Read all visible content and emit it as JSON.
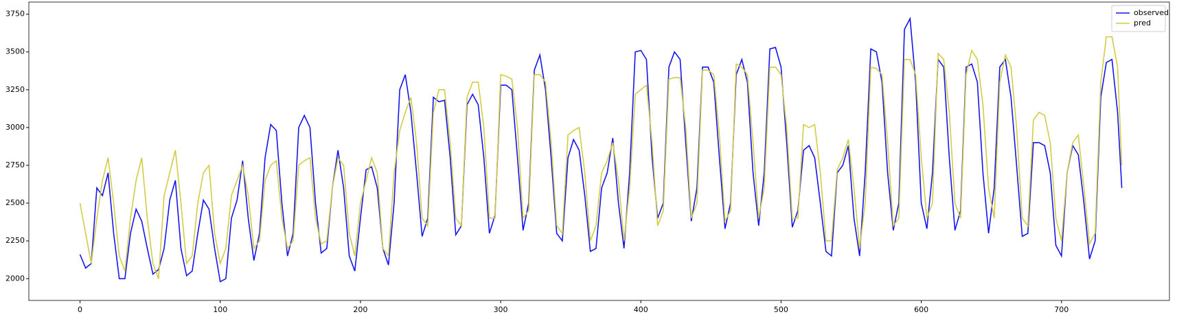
{
  "chart_data": {
    "type": "line",
    "x": [
      0,
      4,
      8,
      12,
      16,
      20,
      24,
      28,
      32,
      36,
      40,
      44,
      48,
      52,
      56,
      60,
      64,
      68,
      72,
      76,
      80,
      84,
      88,
      92,
      96,
      100,
      104,
      108,
      112,
      116,
      120,
      124,
      128,
      132,
      136,
      140,
      144,
      148,
      152,
      156,
      160,
      164,
      168,
      172,
      176,
      180,
      184,
      188,
      192,
      196,
      200,
      204,
      208,
      212,
      216,
      220,
      224,
      228,
      232,
      236,
      240,
      244,
      248,
      252,
      256,
      260,
      264,
      268,
      272,
      276,
      280,
      284,
      288,
      292,
      296,
      300,
      304,
      308,
      312,
      316,
      320,
      324,
      328,
      332,
      336,
      340,
      344,
      348,
      352,
      356,
      360,
      364,
      368,
      372,
      376,
      380,
      384,
      388,
      392,
      396,
      400,
      404,
      408,
      412,
      416,
      420,
      424,
      428,
      432,
      436,
      440,
      444,
      448,
      452,
      456,
      460,
      464,
      468,
      472,
      476,
      480,
      484,
      488,
      492,
      496,
      500,
      504,
      508,
      512,
      516,
      520,
      524,
      528,
      532,
      536,
      540,
      544,
      548,
      552,
      556,
      560,
      564,
      568,
      572,
      576,
      580,
      584,
      588,
      592,
      596,
      600,
      604,
      608,
      612,
      616,
      620,
      624,
      628,
      632,
      636,
      640,
      644,
      648,
      652,
      656,
      660,
      664,
      668,
      672,
      676,
      680,
      684,
      688,
      692,
      696,
      700,
      704,
      708,
      712,
      716,
      720,
      724,
      728,
      732,
      736,
      740,
      743
    ],
    "series": [
      {
        "name": "observed",
        "color": "#1414f0",
        "values": [
          2160,
          2070,
          2100,
          2600,
          2550,
          2700,
          2300,
          2000,
          2000,
          2300,
          2460,
          2380,
          2200,
          2030,
          2060,
          2200,
          2520,
          2650,
          2200,
          2020,
          2050,
          2300,
          2520,
          2460,
          2200,
          1980,
          2000,
          2400,
          2520,
          2780,
          2400,
          2120,
          2300,
          2800,
          3020,
          2980,
          2500,
          2150,
          2300,
          3000,
          3080,
          3000,
          2500,
          2170,
          2200,
          2600,
          2850,
          2600,
          2150,
          2050,
          2400,
          2720,
          2740,
          2600,
          2200,
          2090,
          2500,
          3250,
          3350,
          3100,
          2700,
          2280,
          2400,
          3200,
          3170,
          3180,
          2800,
          2290,
          2350,
          3150,
          3220,
          3150,
          2800,
          2300,
          2420,
          3280,
          3280,
          3250,
          2800,
          2320,
          2500,
          3380,
          3480,
          3250,
          2800,
          2300,
          2250,
          2800,
          2920,
          2850,
          2550,
          2180,
          2200,
          2600,
          2700,
          2930,
          2500,
          2200,
          2700,
          3500,
          3510,
          3450,
          2800,
          2400,
          2500,
          3400,
          3500,
          3450,
          2900,
          2380,
          2600,
          3400,
          3400,
          3300,
          2800,
          2330,
          2500,
          3350,
          3450,
          3300,
          2700,
          2350,
          2700,
          3520,
          3530,
          3400,
          2900,
          2340,
          2450,
          2850,
          2880,
          2800,
          2500,
          2180,
          2150,
          2700,
          2750,
          2880,
          2400,
          2150,
          2700,
          3520,
          3500,
          3300,
          2700,
          2320,
          2500,
          3650,
          3720,
          3300,
          2500,
          2330,
          2700,
          3450,
          3400,
          2800,
          2320,
          2450,
          3400,
          3420,
          3300,
          2700,
          2300,
          2600,
          3400,
          3450,
          3200,
          2750,
          2280,
          2300,
          2900,
          2900,
          2880,
          2700,
          2220,
          2150,
          2700,
          2880,
          2820,
          2500,
          2130,
          2250,
          3200,
          3430,
          3450,
          3100,
          2600
        ]
      },
      {
        "name": "pred",
        "color": "#d2cc44",
        "values": [
          2500,
          2300,
          2100,
          2400,
          2650,
          2800,
          2500,
          2150,
          2050,
          2400,
          2650,
          2800,
          2400,
          2100,
          2000,
          2550,
          2700,
          2850,
          2500,
          2100,
          2150,
          2500,
          2700,
          2750,
          2300,
          2100,
          2200,
          2550,
          2650,
          2750,
          2550,
          2200,
          2250,
          2650,
          2750,
          2780,
          2400,
          2200,
          2250,
          2750,
          2780,
          2800,
          2400,
          2230,
          2250,
          2600,
          2800,
          2750,
          2300,
          2150,
          2500,
          2650,
          2800,
          2700,
          2200,
          2150,
          2700,
          2980,
          3100,
          3200,
          2900,
          2400,
          2350,
          3100,
          3250,
          3250,
          2900,
          2400,
          2350,
          3200,
          3300,
          3300,
          3000,
          2400,
          2400,
          3350,
          3340,
          3320,
          3000,
          2400,
          2450,
          3350,
          3350,
          3300,
          2900,
          2350,
          2300,
          2950,
          2980,
          3000,
          2700,
          2250,
          2350,
          2700,
          2780,
          2900,
          2650,
          2250,
          2600,
          3220,
          3250,
          3280,
          2900,
          2350,
          2450,
          3320,
          3330,
          3330,
          3000,
          2400,
          2500,
          3380,
          3380,
          3350,
          2950,
          2380,
          2450,
          3420,
          3400,
          3350,
          2900,
          2400,
          2600,
          3400,
          3400,
          3350,
          3000,
          2400,
          2400,
          3020,
          3000,
          3020,
          2700,
          2250,
          2250,
          2720,
          2800,
          2920,
          2600,
          2200,
          2500,
          3400,
          3390,
          3350,
          2900,
          2350,
          2400,
          3450,
          3450,
          3350,
          2800,
          2400,
          2500,
          3490,
          3450,
          3100,
          2500,
          2400,
          3350,
          3510,
          3450,
          3150,
          2600,
          2400,
          3300,
          3480,
          3400,
          3000,
          2400,
          2350,
          3050,
          3100,
          3080,
          2900,
          2400,
          2250,
          2700,
          2900,
          2950,
          2600,
          2230,
          2300,
          3300,
          3600,
          3600,
          3400,
          2750
        ]
      }
    ],
    "xlim": [
      -36.5,
      777
    ],
    "ylim": [
      1856,
      3830
    ],
    "xticks": [
      0,
      100,
      200,
      300,
      400,
      500,
      600,
      700
    ],
    "yticks": [
      2000,
      2250,
      2500,
      2750,
      3000,
      3250,
      3500,
      3750
    ],
    "legend": "upper right",
    "grid": false
  }
}
